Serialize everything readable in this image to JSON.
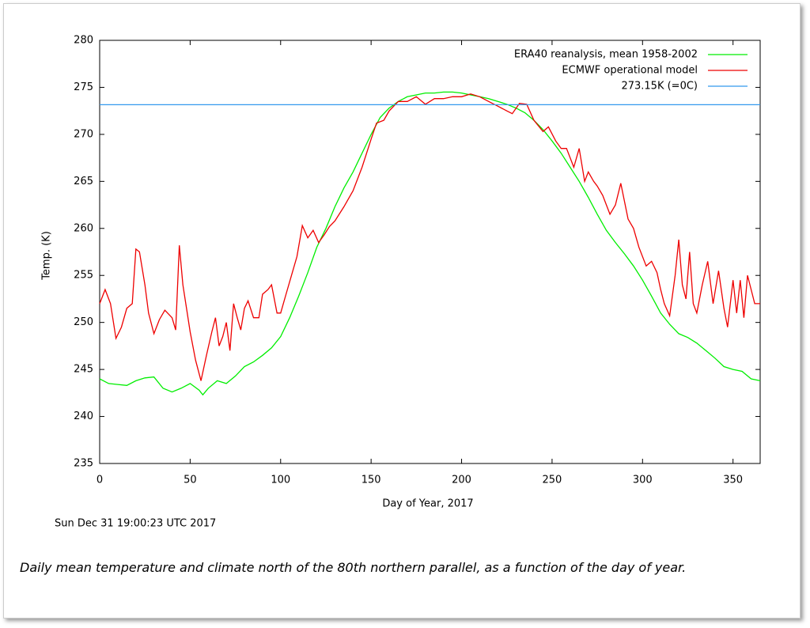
{
  "chart_data": {
    "type": "line",
    "xlabel": "Day of Year, 2017",
    "ylabel": "Temp. (K)",
    "timestamp": "Sun Dec 31 19:00:23 UTC 2017",
    "caption": "Daily mean temperature and climate north of the 80th northern parallel, as a function of the day of year.",
    "xlim": [
      0,
      365
    ],
    "ylim": [
      235,
      280
    ],
    "xticks": [
      0,
      50,
      100,
      150,
      200,
      250,
      300,
      350
    ],
    "yticks": [
      235,
      240,
      245,
      250,
      255,
      260,
      265,
      270,
      275,
      280
    ],
    "legend": "upper right",
    "series": [
      {
        "name": "ERA40 reanalysis, mean 1958-2002",
        "color": "#00ee00",
        "x": [
          0,
          5,
          10,
          15,
          20,
          25,
          30,
          35,
          40,
          45,
          50,
          55,
          57,
          60,
          65,
          70,
          75,
          80,
          85,
          90,
          95,
          100,
          105,
          110,
          115,
          120,
          125,
          130,
          135,
          140,
          145,
          150,
          155,
          160,
          165,
          170,
          175,
          180,
          185,
          190,
          195,
          200,
          205,
          210,
          215,
          220,
          225,
          230,
          235,
          240,
          245,
          250,
          255,
          260,
          265,
          270,
          275,
          280,
          285,
          290,
          295,
          300,
          305,
          310,
          315,
          320,
          325,
          330,
          335,
          340,
          345,
          350,
          355,
          360,
          365
        ],
        "values": [
          244,
          243.5,
          243.4,
          243.3,
          243.8,
          244.1,
          244.2,
          243,
          242.6,
          243,
          243.5,
          242.8,
          242.3,
          243,
          243.8,
          243.5,
          244.3,
          245.3,
          245.8,
          246.5,
          247.3,
          248.5,
          250.5,
          252.8,
          255.3,
          258,
          260,
          262.3,
          264.3,
          266,
          268,
          270,
          271.8,
          272.8,
          273.5,
          274,
          274.2,
          274.4,
          274.4,
          274.5,
          274.5,
          274.4,
          274.2,
          274,
          273.8,
          273.5,
          273.2,
          272.8,
          272.3,
          271.5,
          270.5,
          269.3,
          268,
          266.5,
          265,
          263.3,
          261.5,
          259.8,
          258.5,
          257.3,
          256,
          254.5,
          252.8,
          251,
          249.8,
          248.8,
          248.4,
          247.8,
          247,
          246.2,
          245.3,
          245,
          244.8,
          244,
          243.8
        ]
      },
      {
        "name": "ECMWF operational model",
        "color": "#ee0000",
        "x": [
          0,
          3,
          6,
          9,
          12,
          15,
          18,
          20,
          22,
          25,
          27,
          30,
          33,
          36,
          40,
          42,
          44,
          46,
          50,
          53,
          56,
          59,
          62,
          64,
          66,
          68,
          70,
          72,
          74,
          76,
          78,
          80,
          82,
          85,
          88,
          90,
          93,
          95,
          98,
          100,
          103,
          106,
          109,
          112,
          115,
          118,
          121,
          124,
          127,
          130,
          135,
          140,
          145,
          150,
          153,
          157,
          160,
          165,
          170,
          175,
          180,
          185,
          190,
          195,
          200,
          205,
          210,
          215,
          220,
          225,
          228,
          232,
          236,
          240,
          245,
          248,
          252,
          255,
          258,
          262,
          265,
          268,
          270,
          273,
          275,
          278,
          282,
          285,
          288,
          292,
          295,
          298,
          302,
          305,
          308,
          310,
          312,
          315,
          318,
          320,
          322,
          324,
          326,
          328,
          330,
          333,
          336,
          339,
          342,
          345,
          347,
          350,
          352,
          354,
          356,
          358,
          360,
          362,
          365
        ],
        "values": [
          252,
          253.5,
          252,
          248.3,
          249.5,
          251.5,
          252,
          257.8,
          257.5,
          254,
          251,
          248.8,
          250.3,
          251.3,
          250.5,
          249.2,
          258.2,
          254,
          249,
          246,
          243.8,
          246.5,
          249,
          250.5,
          247.5,
          248.5,
          250,
          247,
          252,
          250.5,
          249.2,
          251.5,
          252.3,
          250.5,
          250.5,
          253,
          253.5,
          254,
          251,
          251,
          253,
          255,
          257,
          260.3,
          259,
          259.8,
          258.5,
          259.3,
          260.2,
          260.8,
          262.3,
          264,
          266.5,
          269.5,
          271.2,
          271.5,
          272.5,
          273.5,
          273.5,
          274,
          273.2,
          273.8,
          273.8,
          274,
          274,
          274.3,
          274,
          273.5,
          273,
          272.5,
          272.2,
          273.3,
          273.2,
          271.5,
          270.3,
          270.8,
          269.3,
          268.5,
          268.5,
          266.5,
          268.5,
          265,
          266,
          265,
          264.5,
          263.5,
          261.5,
          262.5,
          264.8,
          261,
          260,
          258,
          256,
          256.5,
          255.3,
          253.5,
          252,
          250.7,
          255,
          258.8,
          254,
          252.5,
          257.5,
          252,
          251,
          254,
          256.5,
          252,
          255.5,
          251.5,
          249.5,
          254.5,
          251,
          254.5,
          250.5,
          255,
          253.5,
          252,
          252
        ]
      },
      {
        "name": "273.15K (=0C)",
        "color": "#3399ee",
        "x": [
          0,
          365
        ],
        "values": [
          273.15,
          273.15
        ]
      }
    ]
  }
}
